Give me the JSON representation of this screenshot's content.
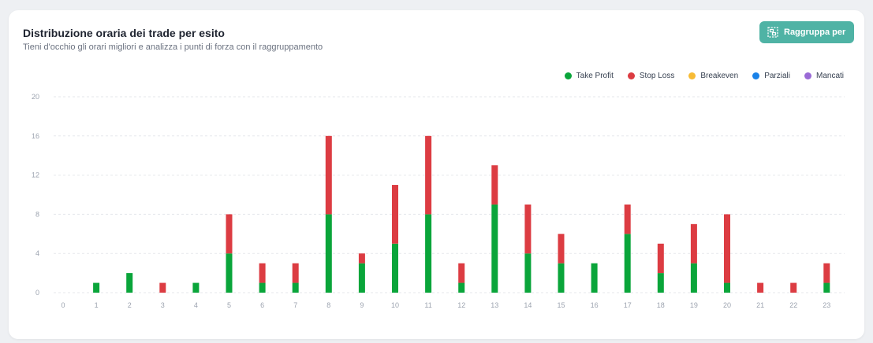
{
  "header": {
    "title": "Distribuzione oraria dei trade per esito",
    "subtitle": "Tieni d'occhio gli orari migliori e analizza i punti di forza con il raggruppamento",
    "group_button_label": "Raggruppa per"
  },
  "colors": {
    "take_profit": "#0aa53a",
    "stop_loss": "#dc3c42",
    "breakeven": "#f7bb35",
    "parziali": "#1a82e8",
    "mancati": "#9a6ad6",
    "button": "#4fb3a5"
  },
  "legend": [
    {
      "label": "Take Profit",
      "color": "#0aa53a"
    },
    {
      "label": "Stop Loss",
      "color": "#dc3c42"
    },
    {
      "label": "Breakeven",
      "color": "#f7bb35"
    },
    {
      "label": "Parziali",
      "color": "#1a82e8"
    },
    {
      "label": "Mancati",
      "color": "#9a6ad6"
    }
  ],
  "chart_data": {
    "type": "bar",
    "stacked": true,
    "categories": [
      "0",
      "1",
      "2",
      "3",
      "4",
      "5",
      "6",
      "7",
      "8",
      "9",
      "10",
      "11",
      "12",
      "13",
      "14",
      "15",
      "16",
      "17",
      "18",
      "19",
      "20",
      "21",
      "22",
      "23"
    ],
    "series": [
      {
        "name": "Take Profit",
        "color": "#0aa53a",
        "values": [
          0,
          1,
          2,
          0,
          1,
          4,
          1,
          1,
          8,
          3,
          5,
          8,
          1,
          9,
          4,
          3,
          3,
          6,
          2,
          3,
          1,
          0,
          0,
          1
        ]
      },
      {
        "name": "Stop Loss",
        "color": "#dc3c42",
        "values": [
          0,
          0,
          0,
          1,
          0,
          4,
          2,
          2,
          8,
          1,
          6,
          8,
          2,
          4,
          5,
          3,
          0,
          3,
          3,
          4,
          7,
          1,
          1,
          2
        ]
      },
      {
        "name": "Breakeven",
        "color": "#f7bb35",
        "values": [
          0,
          0,
          0,
          0,
          0,
          0,
          0,
          0,
          0,
          0,
          0,
          0,
          0,
          0,
          0,
          0,
          0,
          0,
          0,
          0,
          0,
          0,
          0,
          0
        ]
      },
      {
        "name": "Parziali",
        "color": "#1a82e8",
        "values": [
          0,
          0,
          0,
          0,
          0,
          0,
          0,
          0,
          0,
          0,
          0,
          0,
          0,
          0,
          0,
          0,
          0,
          0,
          0,
          0,
          0,
          0,
          0,
          0
        ]
      },
      {
        "name": "Mancati",
        "color": "#9a6ad6",
        "values": [
          0,
          0,
          0,
          0,
          0,
          0,
          0,
          0,
          0,
          0,
          0,
          0,
          0,
          0,
          0,
          0,
          0,
          0,
          0,
          0,
          0,
          0,
          0,
          0
        ]
      }
    ],
    "yticks": [
      "0",
      "4",
      "8",
      "12",
      "16",
      "20"
    ],
    "ylim": [
      0,
      20
    ],
    "grid": true,
    "legend_position": "top-right",
    "xlabel": "",
    "ylabel": ""
  }
}
